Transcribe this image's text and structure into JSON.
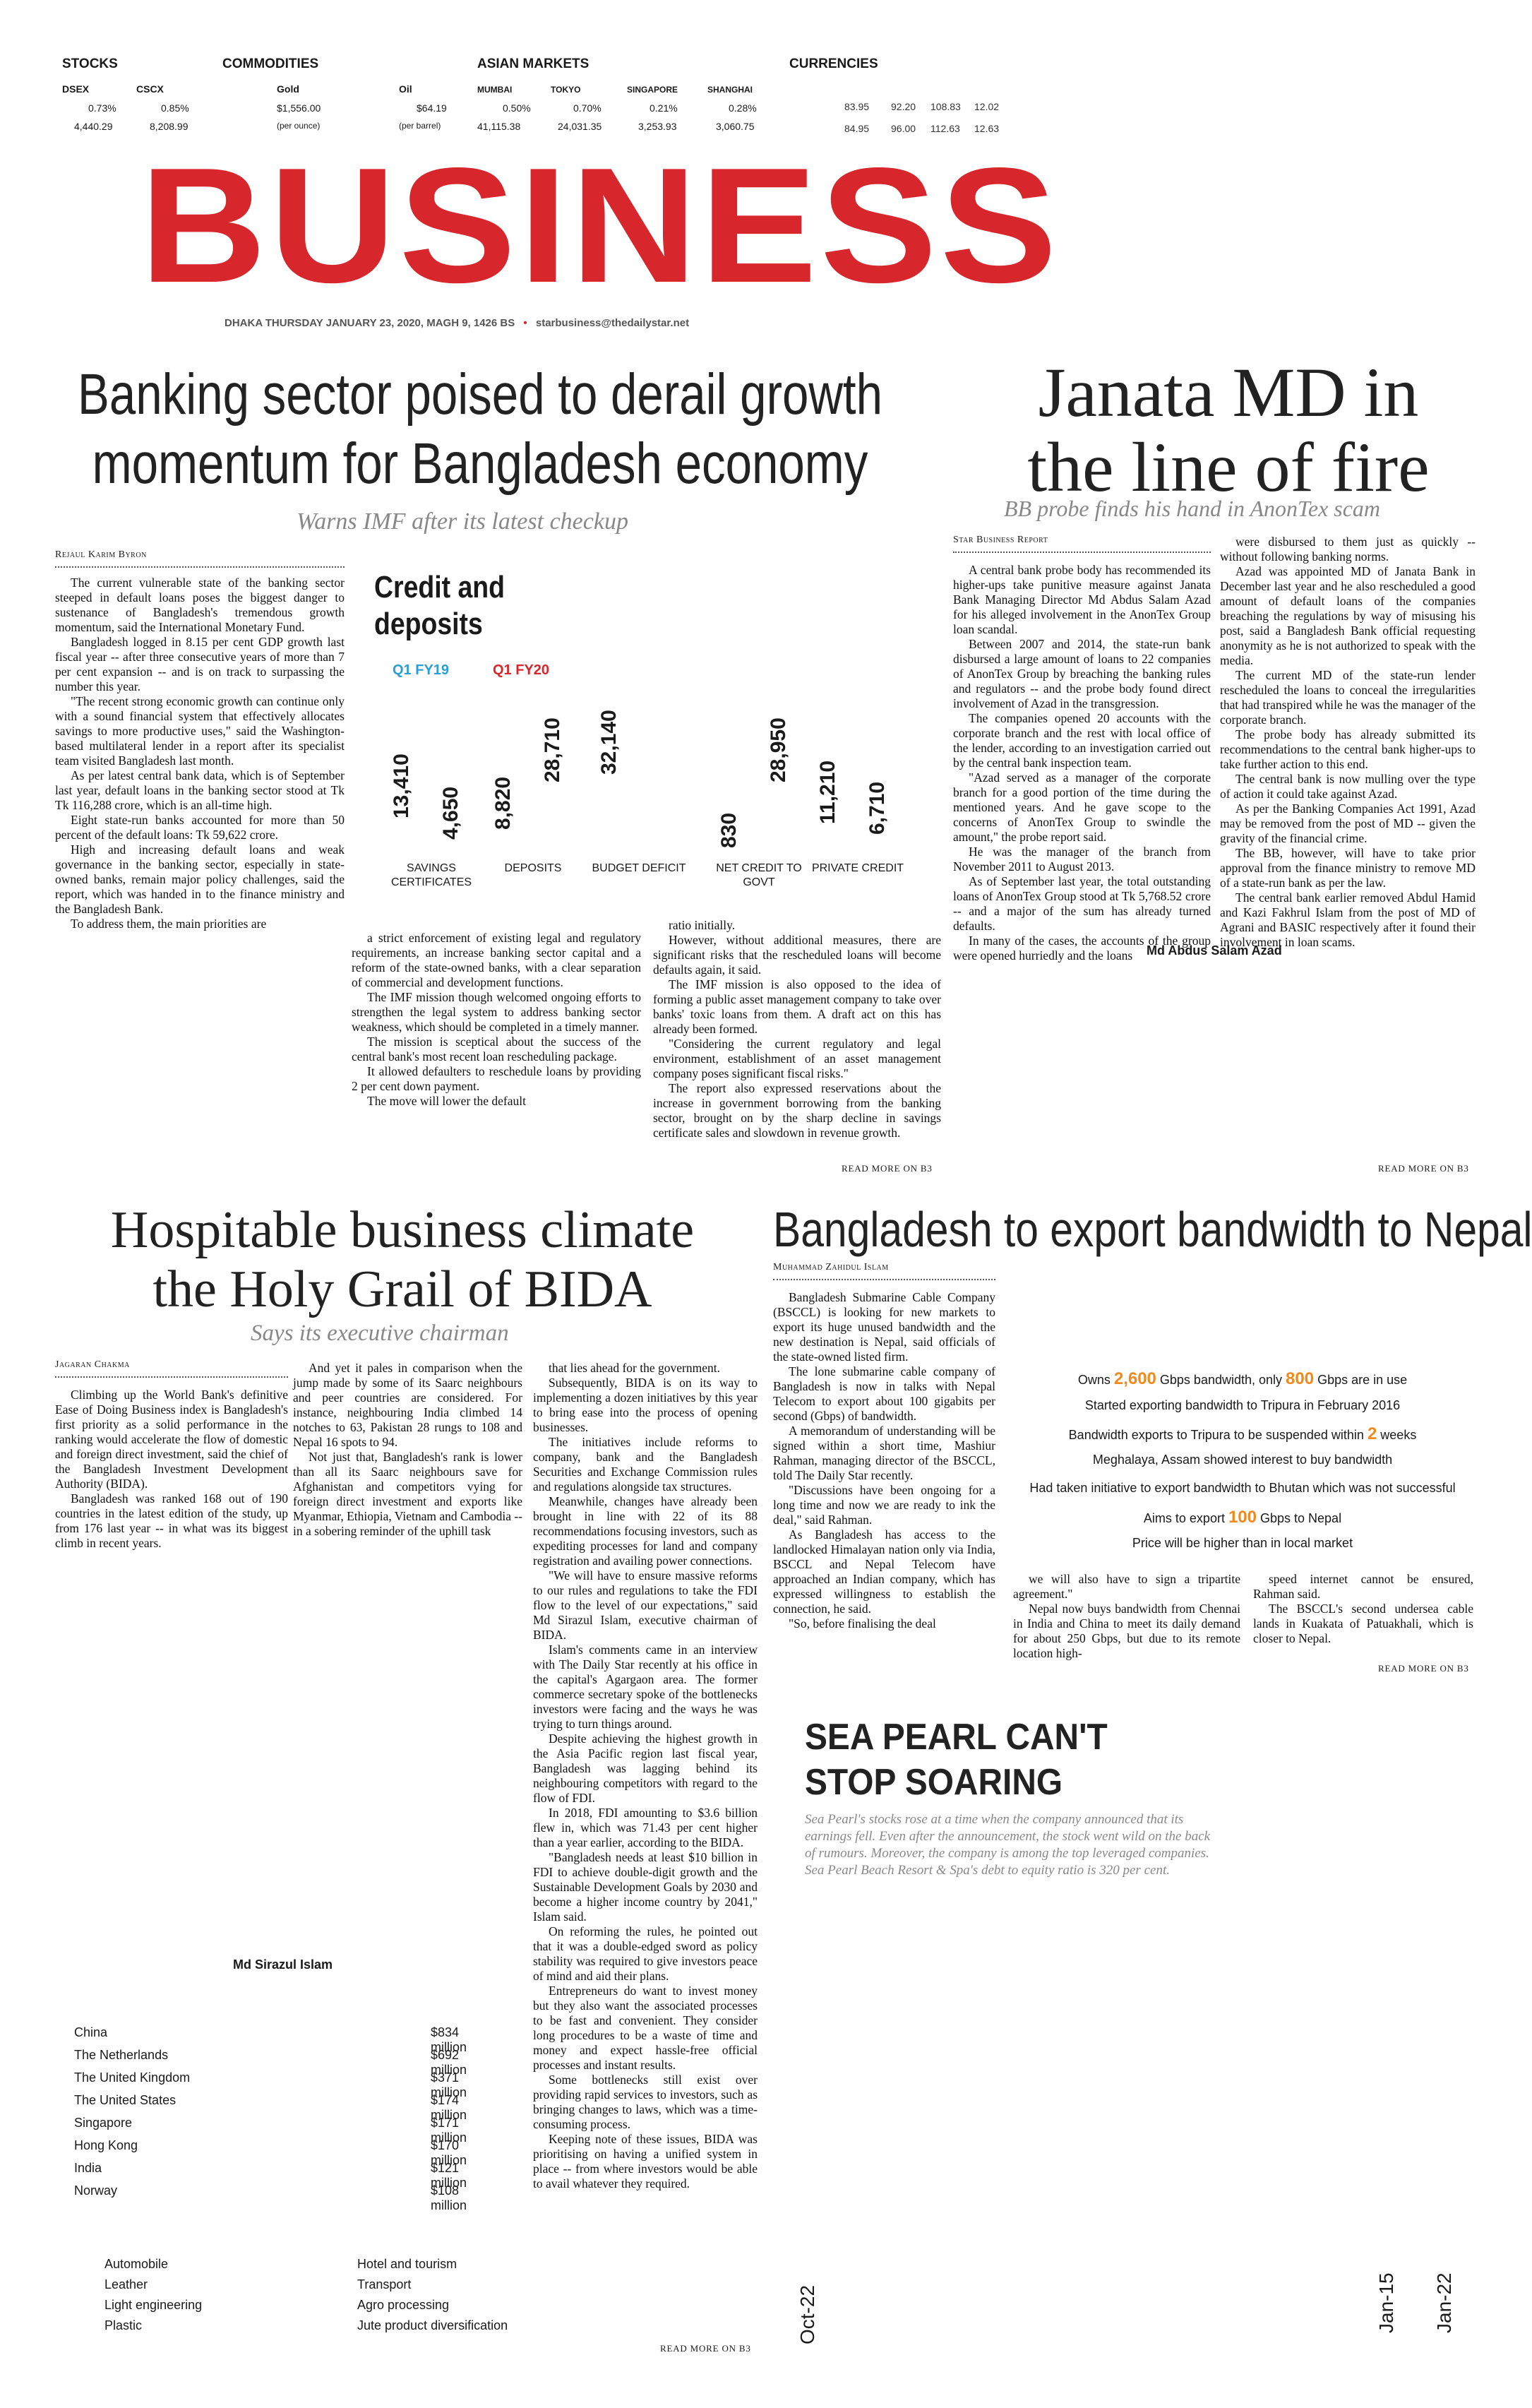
{
  "markets": {
    "stocks": {
      "title": "STOCKS",
      "items": [
        {
          "name": "DSEX",
          "change": "0.73%",
          "value": "4,440.29"
        },
        {
          "name": "CSCX",
          "change": "0.85%",
          "value": "8,208.99"
        }
      ]
    },
    "commodities": {
      "title": "COMMODITIES",
      "items": [
        {
          "name": "Gold",
          "price": "$1,556.00",
          "unit": "(per ounce)"
        },
        {
          "name": "Oil",
          "price": "$64.19",
          "unit": "(per barrel)"
        }
      ]
    },
    "asian": {
      "title": "ASIAN MARKETS",
      "items": [
        {
          "name": "MUMBAI",
          "change": "0.50%",
          "value": "41,115.38"
        },
        {
          "name": "TOKYO",
          "change": "0.70%",
          "value": "24,031.35"
        },
        {
          "name": "SINGAPORE",
          "change": "0.21%",
          "value": "3,253.93"
        },
        {
          "name": "SHANGHAI",
          "change": "0.28%",
          "value": "3,060.75"
        }
      ]
    },
    "currencies": {
      "title": "CURRENCIES",
      "row1": [
        "83.95",
        "92.20",
        "108.83",
        "12.02"
      ],
      "row2": [
        "84.95",
        "96.00",
        "112.63",
        "12.63"
      ]
    }
  },
  "masthead": {
    "title": "BUSINESS",
    "dateline": "DHAKA THURSDAY JANUARY 23, 2020, MAGH 9, 1426 BS",
    "bullet": "•",
    "email": "starbusiness@thedailystar.net",
    "color": "#d7262c"
  },
  "story1": {
    "headline": "Banking sector poised to derail growth momentum for Bangladesh economy",
    "deck": "Warns IMF after its latest checkup",
    "byline": "Rejaul Karim Byron",
    "col1": [
      "The current vulnerable state of the banking sector steeped in default loans poses the biggest danger to sustenance of Bangladesh's tremendous growth momentum, said the International Monetary Fund.",
      "Bangladesh logged in 8.15 per cent GDP growth last fiscal year -- after three consecutive years of more than 7 per cent expansion -- and is on track to surpassing the number this year.",
      "\"The recent strong economic growth can continue only with a sound financial system that effectively allocates savings to more productive uses,\" said the Washington-based multilateral lender in a report after its specialist team visited Bangladesh last month.",
      "As per latest central bank data, which is of September last year, default loans in the banking sector stood at Tk Tk 116,288 crore, which is an all-time high.",
      "Eight state-run banks accounted for more than 50 percent of the default loans: Tk 59,622 crore.",
      "High and increasing default loans and weak governance in the banking sector, especially in state-owned banks, remain major policy challenges, said the report, which was handed in to the finance ministry and the Bangladesh Bank.",
      "To address them, the main priorities are"
    ],
    "col2": [
      "a strict enforcement of existing legal and regulatory requirements, an increase banking sector capital and a reform of the state-owned banks, with a clear separation of commercial and development functions.",
      "The IMF mission though welcomed ongoing efforts to strengthen the legal system to address banking sector weakness, which should be completed in a timely manner.",
      "The mission is sceptical about the success of the central bank's most recent loan rescheduling package.",
      "It allowed defaulters to reschedule loans by providing 2 per cent down payment.",
      "The move will lower the default"
    ],
    "col3": [
      "ratio initially.",
      "However, without additional measures, there are significant risks that the rescheduled loans will become defaults again, it said.",
      "The IMF mission is also opposed to the idea of forming a public asset management company to take over banks' toxic loans from them. A draft act on this has already been formed.",
      "\"Considering the current regulatory and legal environment, establishment of an asset management company poses significant fiscal risks.\"",
      "The report also expressed reservations about the increase in government borrowing from the banking sector, brought on by the sharp decline in savings certificate sales and slowdown in revenue growth."
    ],
    "readmore": "READ MORE ON B3"
  },
  "chart_data": {
    "type": "bar",
    "title": "Credit and deposits",
    "categories": [
      "SAVINGS CERTIFICATES",
      "DEPOSITS",
      "BUDGET DEFICIT",
      "NET CREDIT TO GOVT",
      "PRIVATE CREDIT"
    ],
    "series": [
      {
        "name": "Q1 FY19",
        "color": "#2a9fd6",
        "values": [
          13410,
          8820,
          32140,
          830,
          11210
        ],
        "labels": [
          "13,410",
          "8,820",
          "32,140",
          "830",
          "11,210"
        ]
      },
      {
        "name": "Q1 FY20",
        "color": "#d7262c",
        "values": [
          4650,
          28710,
          null,
          28950,
          6710
        ],
        "labels": [
          "4,650",
          "28,710",
          "",
          "28,950",
          "6,710"
        ]
      }
    ]
  },
  "story2": {
    "headline_line1": "Janata MD in",
    "headline_line2": "the line of fire",
    "deck": "BB probe finds his hand in AnonTex scam",
    "byline": "Star Business Report",
    "photo_caption": "Md Abdus Salam Azad",
    "col1": [
      "A central bank probe body has recommended its higher-ups take punitive measure against Janata Bank Managing Director Md Abdus Salam Azad for his alleged involvement in the AnonTex Group loan scandal.",
      "Between 2007 and 2014, the state-run bank disbursed a large amount of loans to 22 companies of AnonTex Group by breaching the banking rules and regulators -- and the probe body found direct involvement of Azad in the transgression.",
      "The companies opened 20 accounts with the corporate branch and the rest with local office of the lender, according to an investigation carried out by the central bank inspection team.",
      "\"Azad served as a manager of the corporate branch for a good portion of the time during the mentioned years. And he gave scope to the concerns of AnonTex Group to swindle the amount,\" the probe report said.",
      "He was the manager of the branch from November 2011 to August 2013.",
      "As of September last year, the total outstanding loans of AnonTex Group stood at Tk 5,768.52 crore -- and a major of the sum has already turned defaults.",
      "In many of the cases, the accounts of the group were opened hurriedly and the loans"
    ],
    "col2": [
      "were disbursed to them just as quickly -- without following banking norms.",
      "Azad was appointed MD of Janata Bank in December last year and he also rescheduled a good amount of default loans of the companies breaching the regulations by way of misusing his post, said a Bangladesh Bank official requesting anonymity as he is not authorized to speak with the media.",
      "The current MD of the state-run lender rescheduled the loans to conceal the irregularities that had transpired while he was the manager of the corporate branch.",
      "The probe body has already submitted its recommendations to the central bank higher-ups to take further action to this end.",
      "The central bank is now mulling over the type of action it could take against Azad.",
      "As per the Banking Companies Act 1991, Azad may be removed from the post of MD -- given the gravity of the financial crime.",
      "The BB, however, will have to take prior approval from the finance ministry to remove MD of a state-run bank as per the law.",
      "The central bank earlier removed Abdul Hamid and Kazi Fakhrul Islam from the post of MD of Agrani and BASIC respectively after it found their involvement in loan scams."
    ],
    "readmore": "READ MORE ON B3"
  },
  "story3": {
    "headline_line1": "Hospitable business climate",
    "headline_line2": "the Holy Grail of BIDA",
    "deck": "Says its executive chairman",
    "byline": "Jagaran Chakma",
    "photo_caption": "Md Sirazul Islam",
    "col1": [
      "Climbing up the World Bank's definitive Ease of Doing Business index is Bangladesh's first priority as a solid performance in the ranking would accelerate the flow of domestic and foreign direct investment, said the chief of the Bangladesh Investment Development Authority (BIDA).",
      "Bangladesh was ranked 168 out of 190 countries in the latest edition of the study, up from 176 last year -- in what was its biggest climb in recent years."
    ],
    "col2": [
      "And yet it pales in comparison when the jump made by some of its Saarc neighbours and peer countries are considered. For instance, neighbouring India climbed 14 notches to 63, Pakistan 28 rungs to 108 and Nepal 16 spots to 94.",
      "Not just that, Bangladesh's rank is lower than all its Saarc neighbours save for Afghanistan and competitors vying for foreign direct investment and exports like Myanmar, Ethiopia, Vietnam and Cambodia -- in a sobering reminder of the uphill task"
    ],
    "col3": [
      "that lies ahead for the government.",
      "Subsequently, BIDA is on its way to implementing a dozen initiatives by this year to bring ease into the process of opening businesses.",
      "The initiatives include reforms to company, bank and the Bangladesh Securities and Exchange Commission rules and regulations alongside tax structures.",
      "Meanwhile, changes have already been brought in line with 22 of its 88 recommendations focusing investors, such as expediting processes for land and company registration and availing power connections.",
      "\"We will have to ensure massive reforms to our rules and regulations to take the FDI flow to the level of our expectations,\" said Md Sirazul Islam, executive chairman of BIDA.",
      "Islam's comments came in an interview with The Daily Star recently at his office in the capital's Agargaon area. The former commerce secretary spoke of the bottlenecks investors were facing and the ways he was trying to turn things around.",
      "Despite achieving the highest growth in the Asia Pacific region last fiscal year, Bangladesh was lagging behind its neighbouring competitors with regard to the flow of FDI.",
      "In 2018, FDI amounting to $3.6 billion flew in, which was 71.43 per cent higher than a year earlier, according to the BIDA.",
      "\"Bangladesh needs at least $10 billion in FDI to achieve double-digit growth and the Sustainable Development Goals by 2030 and become a higher income country by 2041,\" Islam said.",
      "On reforming the rules, he pointed out that it was a double-edged sword as policy stability was required to give investors peace of mind and aid their plans.",
      "Entrepreneurs do want to invest money but they also want the associated processes to be fast and convenient. They consider long procedures to be a waste of time and money and expect hassle-free official processes and instant results.",
      "Some bottlenecks still exist over providing rapid services to investors, such as bringing changes to laws, which was a time-consuming process.",
      "Keeping note of these issues, BIDA was prioritising on having a unified system in place -- from where investors would be able to avail whatever they required."
    ],
    "fdi": [
      {
        "country": "China",
        "amount": "$834 million"
      },
      {
        "country": "The Netherlands",
        "amount": "$692 million"
      },
      {
        "country": "The United Kingdom",
        "amount": "$371 million"
      },
      {
        "country": "The United States",
        "amount": "$174 million"
      },
      {
        "country": "Singapore",
        "amount": "$171 million"
      },
      {
        "country": "Hong Kong",
        "amount": "$170 million"
      },
      {
        "country": "India",
        "amount": "$121 million"
      },
      {
        "country": "Norway",
        "amount": "$108 million"
      }
    ],
    "sectors_left": [
      "Automobile",
      "Leather",
      "Light engineering",
      "Plastic"
    ],
    "sectors_right": [
      "Hotel and tourism",
      "Transport",
      "Agro processing",
      "Jute product diversification"
    ],
    "readmore": "READ MORE ON B3"
  },
  "story4": {
    "headline": "Bangladesh to export bandwidth to Nepal",
    "byline": "Muhammad Zahidul Islam",
    "col1": [
      "Bangladesh Submarine Cable Company (BSCCL) is looking for new markets to export its huge unused bandwidth and the new destination is Nepal, said officials of the state-owned listed firm.",
      "The lone submarine cable company of Bangladesh is now in talks with Nepal Telecom to export about 100 gigabits per second (Gbps) of bandwidth.",
      "A memorandum of understanding will be signed within a short time, Mashiur Rahman, managing director of the BSCCL, told The Daily Star recently.",
      "\"Discussions have been ongoing for a long time and now we are ready to ink the deal,\" said Rahman.",
      "As Bangladesh has access to the landlocked Himalayan nation only via India, BSCCL and Nepal Telecom have approached an Indian company, which has expressed willingness to establish the connection, he said.",
      "\"So, before finalising the deal"
    ],
    "col2": [
      "we will also have to sign a tripartite agreement.\"",
      "Nepal now buys bandwidth from Chennai in India and China to meet its daily demand for about 250 Gbps, but due to its remote location high-"
    ],
    "col3": [
      "speed internet cannot be ensured, Rahman said.",
      "The BSCCL's second undersea cable lands in Kuakata of Patuakhali, which is closer to Nepal."
    ],
    "facts": {
      "l1_pre": "Owns ",
      "l1_n1": "2,600",
      "l1_mid": " Gbps bandwidth, only ",
      "l1_n2": "800",
      "l1_post": " Gbps are in use",
      "l2": "Started exporting bandwidth to Tripura in February 2016",
      "l3_pre": "Bandwidth exports to Tripura to be suspended within ",
      "l3_n": "2",
      "l3_post": " weeks",
      "l4": "Meghalaya, Assam showed interest to buy bandwidth",
      "l5": "Had taken initiative to export bandwidth to Bhutan which was not successful",
      "l6_pre": "Aims to export ",
      "l6_n": "100",
      "l6_post": " Gbps to Nepal",
      "l7": "Price will be higher than in local market",
      "accent": "#f08a1c"
    },
    "readmore": "READ MORE ON B3"
  },
  "story5": {
    "headline_line1": "SEA PEARL CAN'T",
    "headline_line2": "STOP SOARING",
    "blurb": "Sea Pearl's stocks rose at a time when the company announced that its earnings fell. Even after the announcement, the stock went wild on the back of rumours. Moreover, the company is among the top leveraged companies. Sea Pearl Beach Resort & Spa's debt to equity ratio is 320 per cent.",
    "axis_labels": [
      "Oct-22",
      "Jan-15",
      "Jan-22"
    ]
  }
}
